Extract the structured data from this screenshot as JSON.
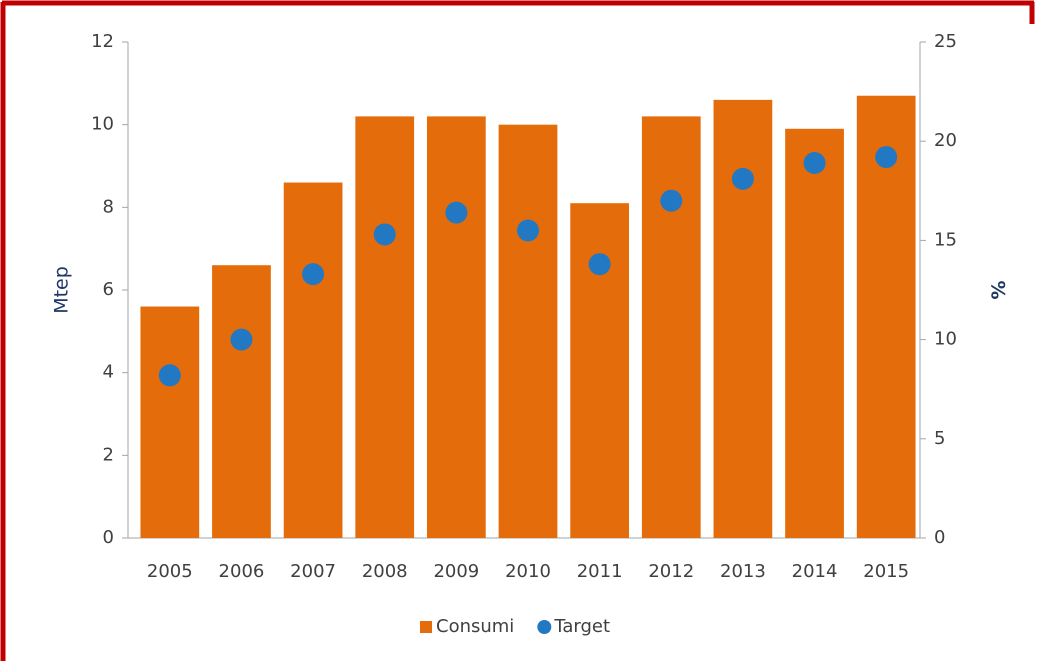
{
  "chart_data": {
    "type": "bar_scatter",
    "categories": [
      "2005",
      "2006",
      "2007",
      "2008",
      "2009",
      "2010",
      "2011",
      "2012",
      "2013",
      "2014",
      "2015"
    ],
    "series": [
      {
        "name": "Consumi",
        "color": "#e46c0a",
        "values": [
          5.6,
          6.6,
          8.6,
          10.2,
          10.2,
          10.0,
          8.1,
          10.2,
          10.6,
          9.9,
          10.7
        ]
      },
      {
        "name": "Target",
        "color": "#2378c3",
        "axis": "y2",
        "values": [
          8.2,
          10.0,
          13.3,
          15.3,
          16.4,
          15.5,
          13.8,
          17.0,
          18.1,
          18.9,
          19.2
        ]
      }
    ],
    "ylabel": "Mtep",
    "y2label": "%",
    "ylim": [
      0,
      12
    ],
    "yticks": [
      0,
      2,
      4,
      6,
      8,
      10,
      12
    ],
    "y2lim": [
      0,
      25
    ],
    "y2ticks": [
      0,
      5,
      10,
      15,
      20,
      25
    ],
    "legend": "bottom"
  }
}
